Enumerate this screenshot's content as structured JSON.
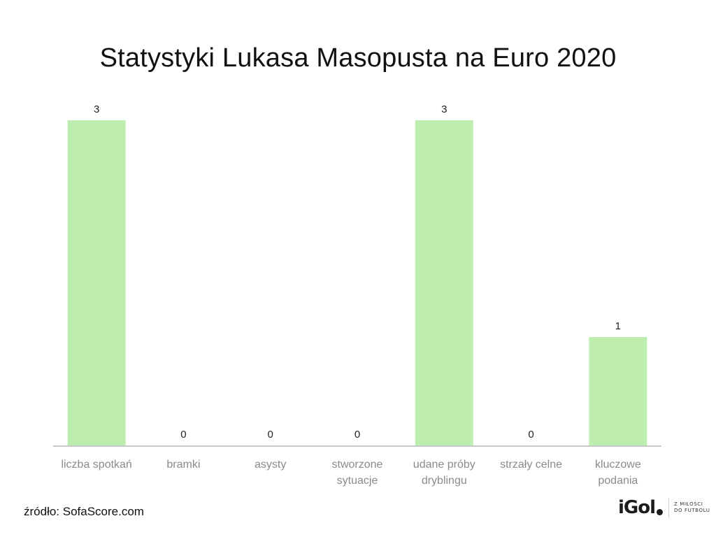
{
  "title": "Statystyki Lukasa Masopusta na Euro 2020",
  "source": "źródło: SofaScore.com",
  "logo": {
    "wordmark": "iGol",
    "tagline_line1": "Z MIŁOŚCI",
    "tagline_line2": "DO FUTBOLU"
  },
  "colors": {
    "bar": "#bdeeb0",
    "axis": "#c8c8c8",
    "category_text": "#8a8a8a"
  },
  "chart_data": {
    "type": "bar",
    "title": "Statystyki Lukasa Masopusta na Euro 2020",
    "xlabel": "",
    "ylabel": "",
    "ylim": [
      0,
      3
    ],
    "grid": false,
    "legend": "none",
    "categories": [
      [
        "liczba spotkań"
      ],
      [
        "bramki"
      ],
      [
        "asysty"
      ],
      [
        "stworzone",
        "sytuacje"
      ],
      [
        "udane próby",
        "dryblingu"
      ],
      [
        "strzały celne"
      ],
      [
        "kluczowe",
        "podania"
      ]
    ],
    "values": [
      3,
      0,
      0,
      0,
      3,
      0,
      1
    ],
    "data_labels": [
      "3",
      "0",
      "0",
      "0",
      "3",
      "0",
      "1"
    ]
  }
}
